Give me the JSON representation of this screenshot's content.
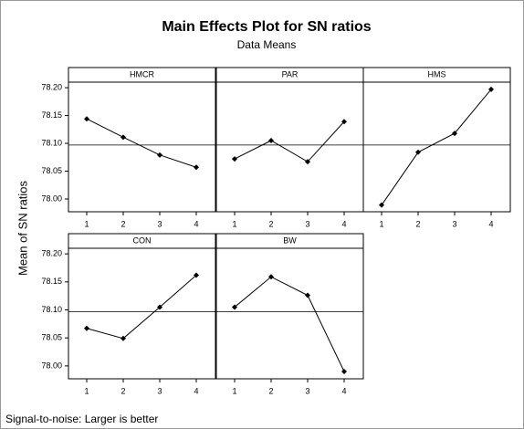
{
  "chart_data": {
    "type": "line",
    "title": "Main Effects Plot for SN ratios",
    "subtitle": "Data Means",
    "y_label": "Mean of SN ratios",
    "footnote": "Signal-to-noise: Larger is better",
    "ylim": [
      77.977,
      78.21
    ],
    "yticks": [
      {
        "value": 78.0,
        "label": "78.00"
      },
      {
        "value": 78.05,
        "label": "78.05"
      },
      {
        "value": 78.1,
        "label": "78.10"
      },
      {
        "value": 78.15,
        "label": "78.15"
      },
      {
        "value": 78.2,
        "label": "78.20"
      }
    ],
    "reference_line": 78.097,
    "color": "#000000",
    "panels": [
      {
        "name": "HMCR",
        "categories": [
          "1",
          "2",
          "3",
          "4"
        ],
        "values": [
          78.144,
          78.111,
          78.079,
          78.057
        ]
      },
      {
        "name": "PAR",
        "categories": [
          "1",
          "2",
          "3",
          "4"
        ],
        "values": [
          78.072,
          78.105,
          78.067,
          78.139
        ]
      },
      {
        "name": "HMS",
        "categories": [
          "1",
          "2",
          "3",
          "4"
        ],
        "values": [
          77.989,
          78.084,
          78.118,
          78.197
        ]
      },
      {
        "name": "CON",
        "categories": [
          "1",
          "2",
          "3",
          "4"
        ],
        "values": [
          78.067,
          78.049,
          78.105,
          78.162
        ]
      },
      {
        "name": "BW",
        "categories": [
          "1",
          "2",
          "3",
          "4"
        ],
        "values": [
          78.105,
          78.159,
          78.126,
          77.99
        ]
      }
    ]
  }
}
